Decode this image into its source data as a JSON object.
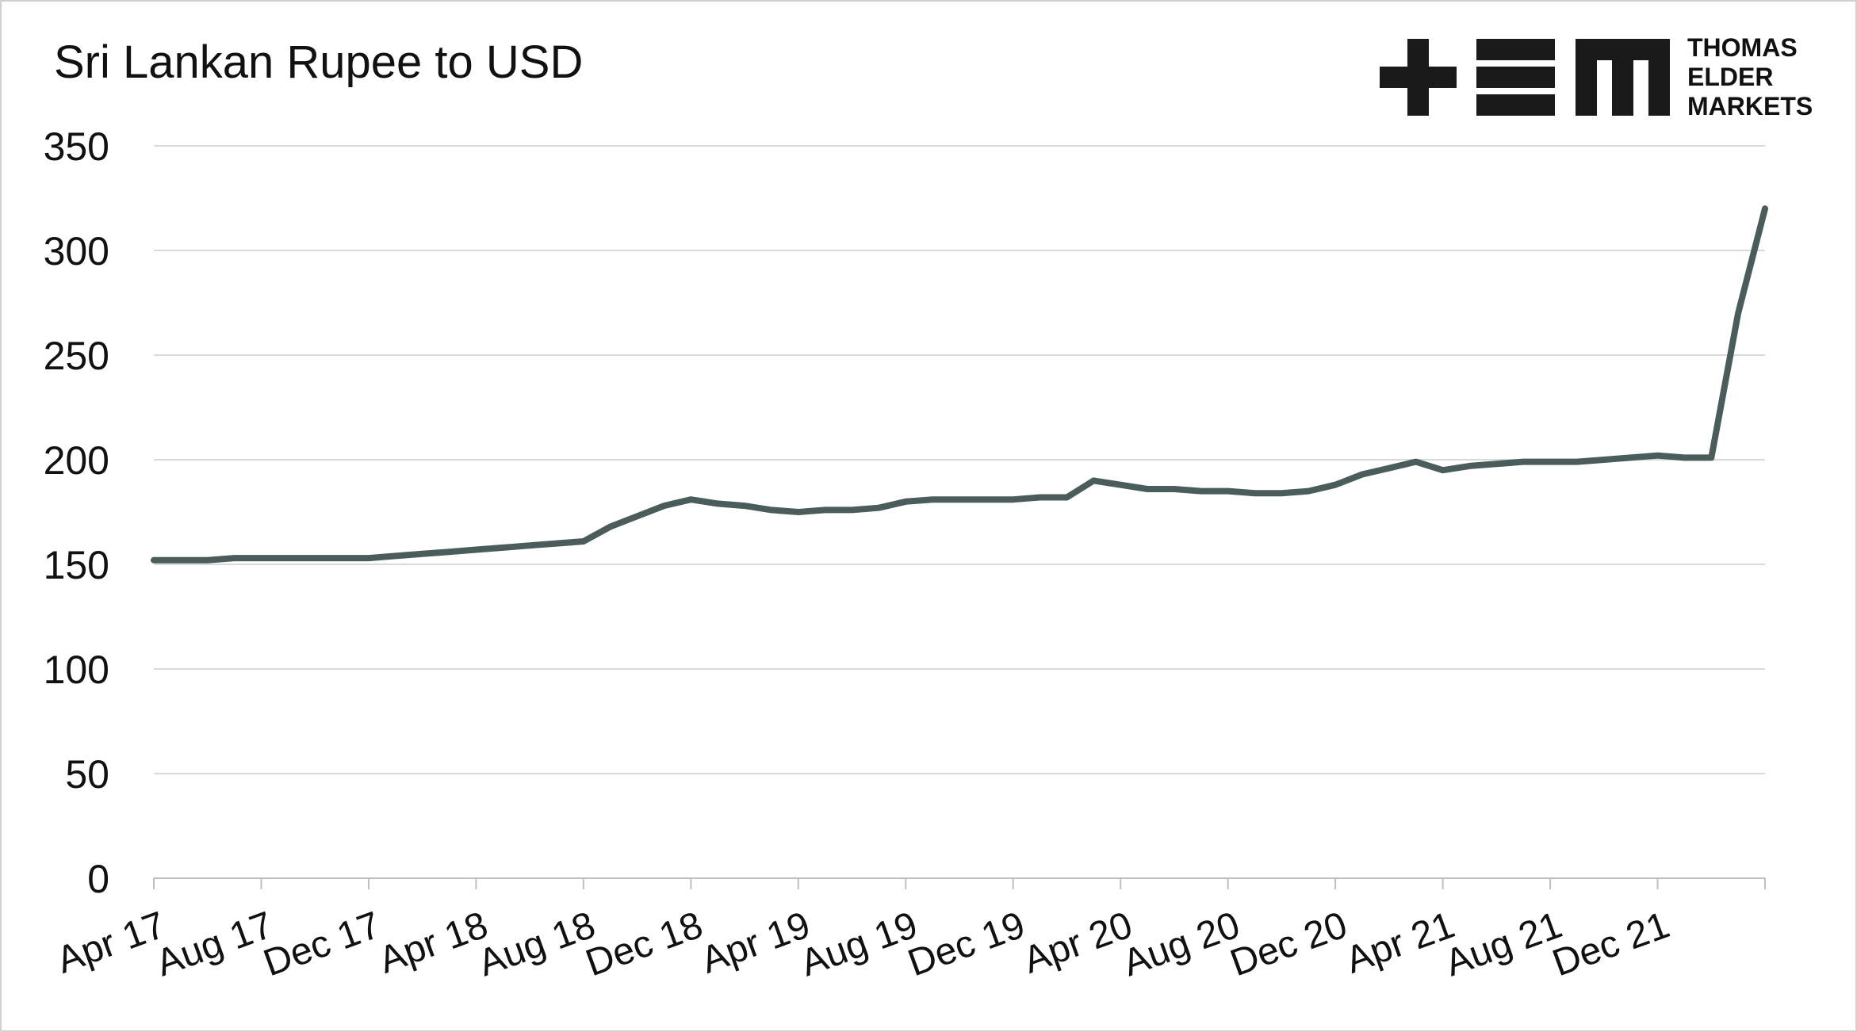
{
  "chart_data": {
    "type": "line",
    "title": "Sri Lankan Rupee to USD",
    "logo_text": [
      "THOMAS",
      "ELDER",
      "MARKETS"
    ],
    "categories": [
      "Apr 17",
      null,
      null,
      null,
      "Aug 17",
      null,
      null,
      null,
      "Dec 17",
      null,
      null,
      null,
      "Apr 18",
      null,
      null,
      null,
      "Aug 18",
      null,
      null,
      null,
      "Dec 18",
      null,
      null,
      null,
      "Apr 19",
      null,
      null,
      null,
      "Aug 19",
      null,
      null,
      null,
      "Dec 19",
      null,
      null,
      null,
      "Apr 20",
      null,
      null,
      null,
      "Aug 20",
      null,
      null,
      null,
      "Dec 20",
      null,
      null,
      null,
      "Apr 21",
      null,
      null,
      null,
      "Aug 21",
      null,
      null,
      null,
      "Dec 21",
      null,
      null,
      null,
      null
    ],
    "values": [
      152,
      152,
      152,
      153,
      153,
      153,
      153,
      153,
      153,
      154,
      155,
      156,
      157,
      158,
      159,
      160,
      161,
      168,
      173,
      178,
      181,
      179,
      178,
      176,
      175,
      176,
      176,
      177,
      180,
      181,
      181,
      181,
      181,
      182,
      182,
      190,
      188,
      186,
      186,
      185,
      185,
      184,
      184,
      185,
      188,
      193,
      196,
      199,
      195,
      197,
      198,
      199,
      199,
      199,
      200,
      201,
      202,
      201,
      201,
      270,
      320
    ],
    "color": "#4a5d5b",
    "ylim": [
      0,
      350
    ],
    "yticks": [
      0,
      50,
      100,
      150,
      200,
      250,
      300,
      350
    ],
    "grid": true
  }
}
